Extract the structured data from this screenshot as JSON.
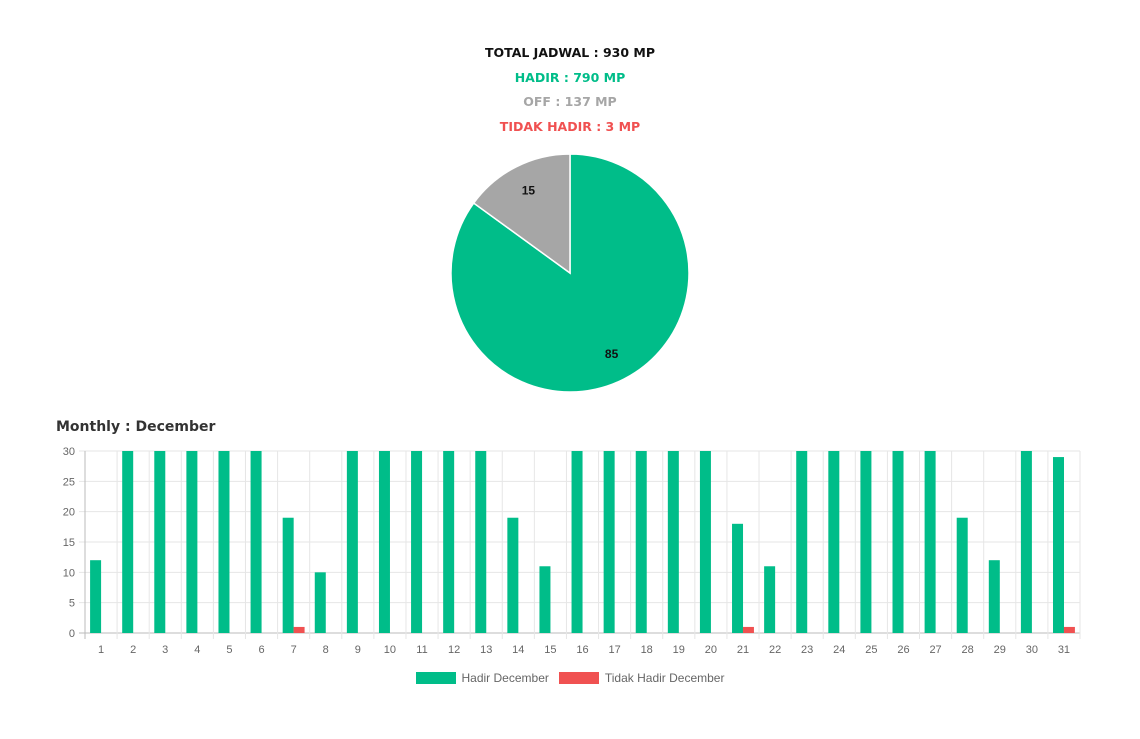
{
  "summary": {
    "total": "TOTAL JADWAL : 930 MP",
    "hadir": "HADIR : 790 MP",
    "off": "OFF : 137 MP",
    "tidak_hadir": "TIDAK HADIR : 3 MP"
  },
  "colors": {
    "hadir": "#00bd89",
    "off": "#a6a6a6",
    "tidak": "#f05151"
  },
  "chart_data": [
    {
      "type": "pie",
      "labels": [
        "HADIR",
        "OFF",
        "TIDAK HADIR"
      ],
      "values": [
        85,
        15,
        0
      ],
      "data_labels": [
        "85",
        "15",
        ""
      ]
    },
    {
      "type": "bar",
      "title": "Monthly : December",
      "categories": [
        "1",
        "2",
        "3",
        "4",
        "5",
        "6",
        "7",
        "8",
        "9",
        "10",
        "11",
        "12",
        "13",
        "14",
        "15",
        "16",
        "17",
        "18",
        "19",
        "20",
        "21",
        "22",
        "23",
        "24",
        "25",
        "26",
        "27",
        "28",
        "29",
        "30",
        "31"
      ],
      "series": [
        {
          "name": "Hadir December",
          "values": [
            12,
            30,
            30,
            30,
            30,
            30,
            19,
            10,
            30,
            30,
            30,
            30,
            30,
            19,
            11,
            30,
            30,
            30,
            30,
            30,
            18,
            11,
            30,
            30,
            30,
            30,
            30,
            19,
            12,
            30,
            29
          ]
        },
        {
          "name": "Tidak Hadir December",
          "values": [
            0,
            0,
            0,
            0,
            0,
            0,
            1,
            0,
            0,
            0,
            0,
            0,
            0,
            0,
            0,
            0,
            0,
            0,
            0,
            0,
            1,
            0,
            0,
            0,
            0,
            0,
            0,
            0,
            0,
            0,
            1
          ]
        }
      ],
      "yticks": [
        "0",
        "5",
        "10",
        "15",
        "20",
        "25",
        "30"
      ],
      "ylim": [
        0,
        30
      ],
      "grid": true,
      "legend": "bottom"
    }
  ]
}
